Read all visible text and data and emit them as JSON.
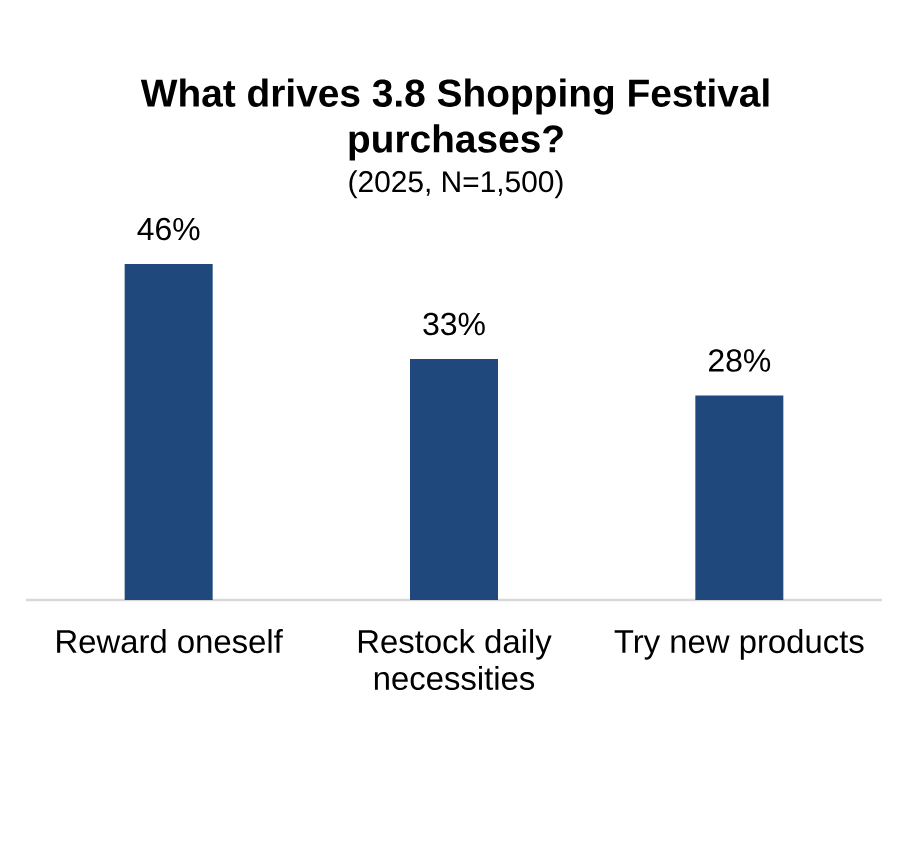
{
  "chart_data": {
    "type": "bar",
    "title": "What drives 3.8 Shopping Festival purchases?",
    "subtitle": "(2025, N=1,500)",
    "categories": [
      "Reward oneself",
      "Restock daily necessities",
      "Try new products"
    ],
    "values": [
      46,
      33,
      28
    ],
    "value_labels": [
      "46%",
      "33%",
      "28%"
    ],
    "color": "#1f487c"
  }
}
